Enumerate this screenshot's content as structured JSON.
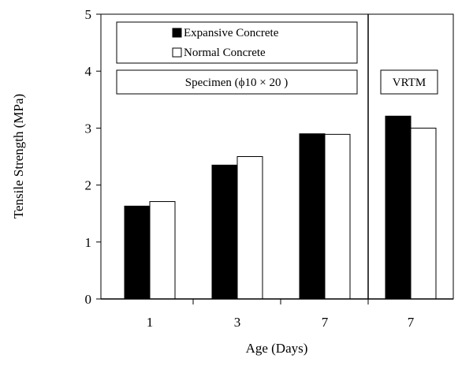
{
  "chart_data": {
    "type": "bar",
    "ylabel": "Tensile Strength (MPa)",
    "xlabel": "Age (Days)",
    "ylim": [
      0,
      5
    ],
    "yticks": [
      "0",
      "1",
      "2",
      "3",
      "4",
      "5"
    ],
    "categories": [
      "1",
      "3",
      "7",
      "7"
    ],
    "series": [
      {
        "name": "Expansive Concrete",
        "fill": "#000000",
        "values": [
          1.63,
          2.35,
          2.9,
          3.21
        ]
      },
      {
        "name": "Normal Concrete",
        "fill": "#ffffff",
        "values": [
          1.71,
          2.5,
          2.89,
          3.0
        ]
      }
    ],
    "groups": [
      {
        "label": "Specimen (ϕ10 × 20 )",
        "categories": [
          0,
          1,
          2
        ]
      },
      {
        "label": "VRTM",
        "categories": [
          3
        ]
      }
    ],
    "legend_position": "top-left"
  }
}
